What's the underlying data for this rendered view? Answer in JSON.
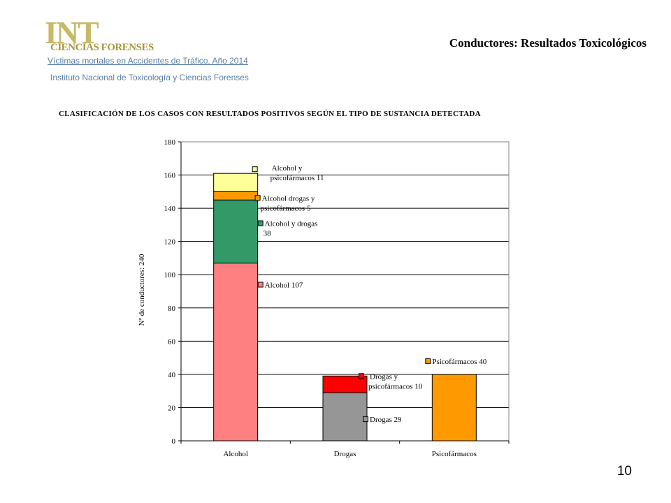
{
  "logo": {
    "big_text": "INT",
    "small_text": "CIENCIAS FORENSES"
  },
  "header": {
    "title": "Conductores: Resultados Toxicológicos",
    "link": "Víctimas mortales en Accidentes de Tráfico. Año 2014",
    "institute": "Instituto Nacional de Toxicología y Ciencias Forenses"
  },
  "page_number": "10",
  "chart_data": {
    "type": "bar",
    "stacked": true,
    "title": "CLASIFICACIÓN DE LOS CASOS CON RESULTADOS POSITIVOS SEGÚN EL TIPO DE SUSTANCIA DETECTADA",
    "xlabel": "",
    "ylabel": "Nº de conductores: 240",
    "ylim": [
      0,
      180
    ],
    "yticks": [
      "0",
      "20",
      "40",
      "60",
      "80",
      "100",
      "120",
      "140",
      "160",
      "180"
    ],
    "grid": true,
    "categories": [
      "Alcohol",
      "Drogas",
      "Psicofármacos"
    ],
    "series": [
      {
        "name": "Alcohol",
        "color": "#ff8080",
        "values": [
          107,
          0,
          0
        ]
      },
      {
        "name": "Alcohol y drogas",
        "color": "#339966",
        "values": [
          38,
          0,
          0
        ]
      },
      {
        "name": "Alcohol drogas y psicofármacos",
        "color": "#ff9900",
        "values": [
          5,
          0,
          0
        ]
      },
      {
        "name": "Alcohol y psicofármacos",
        "color": "#ffff99",
        "values": [
          11,
          0,
          0
        ]
      },
      {
        "name": "Drogas",
        "color": "#969696",
        "values": [
          0,
          29,
          0
        ]
      },
      {
        "name": "Drogas y psicofármacos",
        "color": "#ff0000",
        "values": [
          0,
          10,
          0
        ]
      },
      {
        "name": "Psicofármacos",
        "color": "#ff9900",
        "values": [
          0,
          0,
          40
        ]
      }
    ],
    "annotations": [
      {
        "series": "Alcohol y psicofármacos",
        "lines": [
          "Alcohol y",
          "psicofármacos 11"
        ]
      },
      {
        "series": "Alcohol drogas y psicofármacos",
        "lines": [
          "Alcohol drogas y",
          "psicofármacos 5"
        ]
      },
      {
        "series": "Alcohol y drogas",
        "lines": [
          "Alcohol y drogas",
          "38"
        ]
      },
      {
        "series": "Alcohol",
        "lines": [
          "Alcohol 107"
        ]
      },
      {
        "series": "Drogas y psicofármacos",
        "lines": [
          "Drogas y",
          "psicofármacos 10"
        ]
      },
      {
        "series": "Drogas",
        "lines": [
          "Drogas 29"
        ]
      },
      {
        "series": "Psicofármacos",
        "lines": [
          "Psicofármacos  40"
        ]
      }
    ]
  }
}
